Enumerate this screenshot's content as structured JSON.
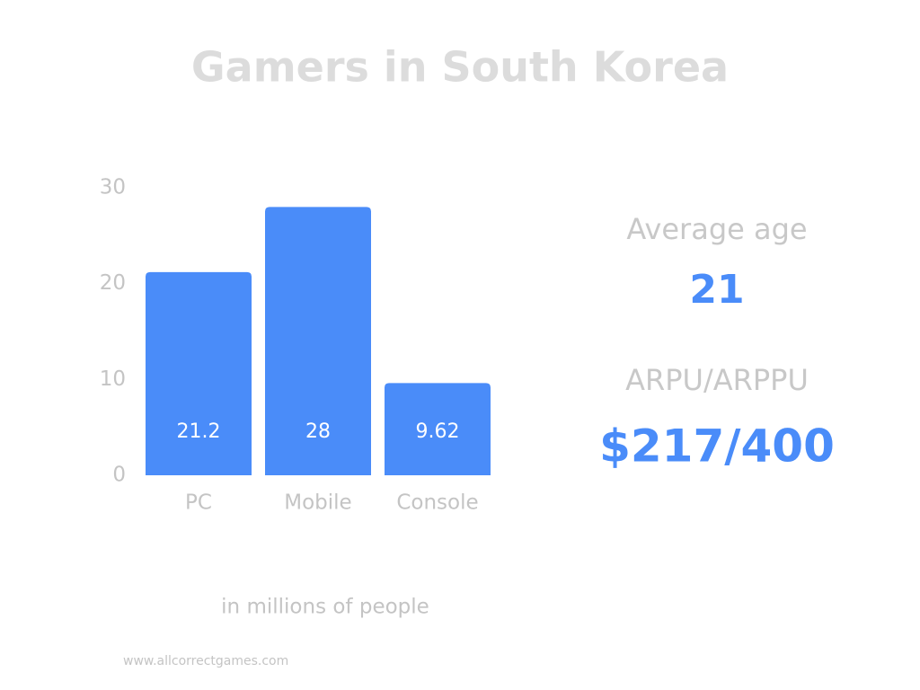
{
  "chart_data": {
    "type": "bar",
    "title": "Gamers in South Korea",
    "categories": [
      "PC",
      "Mobile",
      "Console"
    ],
    "values": [
      21.2,
      28,
      9.62
    ],
    "color": "#4a8cf9",
    "ylim": [
      0,
      30
    ],
    "yticks": [
      0,
      10,
      20,
      30
    ],
    "grid": false,
    "value_labels_shown": true,
    "caption": "in millions of people"
  },
  "stats": [
    {
      "label": "Average age",
      "value": "21"
    },
    {
      "label": "ARPU/ARPPU",
      "value": "$217/400"
    }
  ],
  "footer": "www.allcorrectgames.com"
}
